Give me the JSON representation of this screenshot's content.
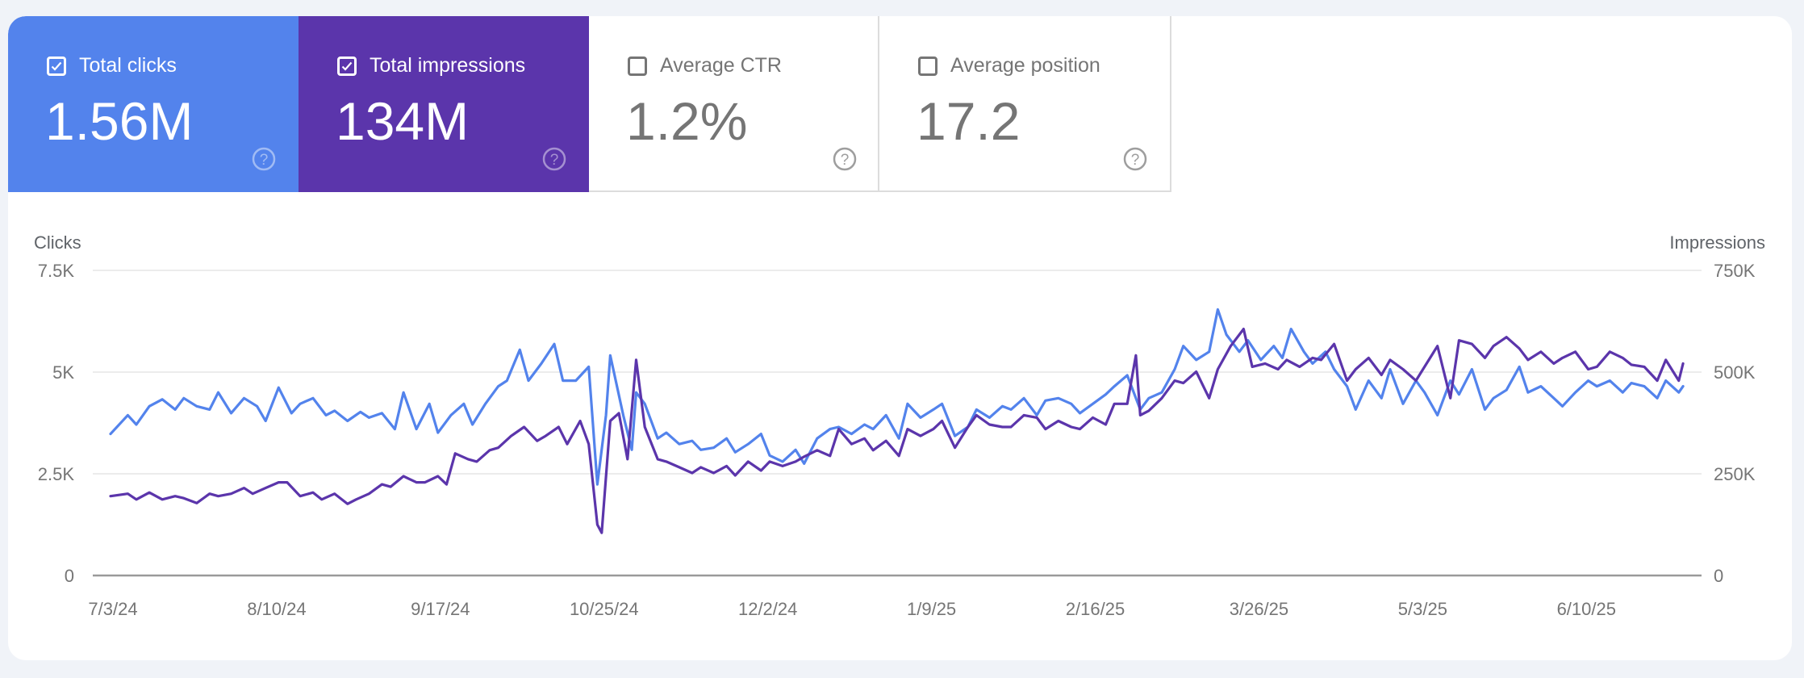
{
  "metrics": [
    {
      "id": "clicks",
      "label": "Total clicks",
      "value": "1.56M",
      "checked": true,
      "color": "#5383ec",
      "help_icon": "help-circle-icon"
    },
    {
      "id": "impressions",
      "label": "Total impressions",
      "value": "134M",
      "checked": true,
      "color": "#5b35ab",
      "help_icon": "help-circle-icon"
    },
    {
      "id": "ctr",
      "label": "Average CTR",
      "value": "1.2%",
      "checked": false,
      "color": "#ffffff",
      "help_icon": "help-circle-icon"
    },
    {
      "id": "position",
      "label": "Average position",
      "value": "17.2",
      "checked": false,
      "color": "#ffffff",
      "help_icon": "help-circle-icon"
    }
  ],
  "chart_data": {
    "type": "line",
    "start_date": "7/3/24",
    "x_unit": "days since start",
    "left_axis": {
      "title": "Clicks",
      "ticks": [
        "0",
        "2.5K",
        "5K",
        "7.5K"
      ],
      "range": [
        0,
        7500
      ]
    },
    "right_axis": {
      "title": "Impressions",
      "ticks": [
        "0",
        "250K",
        "500K",
        "750K"
      ],
      "range": [
        0,
        750000
      ]
    },
    "x_ticks": [
      "7/3/24",
      "8/10/24",
      "9/17/24",
      "10/25/24",
      "12/2/24",
      "1/9/25",
      "2/16/25",
      "3/26/25",
      "5/3/25",
      "6/10/25"
    ],
    "x_tick_spacing_days": 38,
    "x_range_days": [
      0,
      365
    ],
    "grid": true,
    "series": [
      {
        "name": "Impressions",
        "axis": "right",
        "color": "#5383ec",
        "points": [
          [
            0,
            348000
          ],
          [
            4,
            394000
          ],
          [
            6,
            371000
          ],
          [
            9,
            416000
          ],
          [
            12,
            433000
          ],
          [
            15,
            408000
          ],
          [
            17,
            436000
          ],
          [
            20,
            416000
          ],
          [
            23,
            408000
          ],
          [
            25,
            450000
          ],
          [
            28,
            399000
          ],
          [
            31,
            436000
          ],
          [
            34,
            416000
          ],
          [
            36,
            380000
          ],
          [
            39,
            462000
          ],
          [
            42,
            399000
          ],
          [
            44,
            422000
          ],
          [
            47,
            436000
          ],
          [
            50,
            394000
          ],
          [
            52,
            405000
          ],
          [
            55,
            380000
          ],
          [
            58,
            402000
          ],
          [
            60,
            388000
          ],
          [
            63,
            399000
          ],
          [
            66,
            360000
          ],
          [
            68,
            450000
          ],
          [
            71,
            360000
          ],
          [
            74,
            422000
          ],
          [
            76,
            351000
          ],
          [
            79,
            394000
          ],
          [
            82,
            422000
          ],
          [
            84,
            371000
          ],
          [
            87,
            422000
          ],
          [
            90,
            465000
          ],
          [
            92,
            479000
          ],
          [
            95,
            555000
          ],
          [
            97,
            479000
          ],
          [
            100,
            521000
          ],
          [
            103,
            569000
          ],
          [
            105,
            479000
          ],
          [
            108,
            479000
          ],
          [
            111,
            513000
          ],
          [
            113,
            224000
          ],
          [
            115,
            394000
          ],
          [
            116,
            541000
          ],
          [
            119,
            394000
          ],
          [
            121,
            309000
          ],
          [
            122,
            450000
          ],
          [
            124,
            422000
          ],
          [
            127,
            337000
          ],
          [
            129,
            351000
          ],
          [
            132,
            323000
          ],
          [
            135,
            331000
          ],
          [
            137,
            309000
          ],
          [
            140,
            314000
          ],
          [
            143,
            337000
          ],
          [
            145,
            303000
          ],
          [
            148,
            323000
          ],
          [
            151,
            348000
          ],
          [
            153,
            295000
          ],
          [
            156,
            280000
          ],
          [
            159,
            309000
          ],
          [
            161,
            275000
          ],
          [
            164,
            337000
          ],
          [
            167,
            360000
          ],
          [
            169,
            365000
          ],
          [
            172,
            348000
          ],
          [
            175,
            371000
          ],
          [
            177,
            360000
          ],
          [
            180,
            394000
          ],
          [
            183,
            337000
          ],
          [
            185,
            422000
          ],
          [
            188,
            388000
          ],
          [
            191,
            408000
          ],
          [
            193,
            422000
          ],
          [
            196,
            343000
          ],
          [
            199,
            365000
          ],
          [
            201,
            408000
          ],
          [
            204,
            388000
          ],
          [
            207,
            416000
          ],
          [
            209,
            408000
          ],
          [
            212,
            436000
          ],
          [
            215,
            394000
          ],
          [
            217,
            430000
          ],
          [
            220,
            436000
          ],
          [
            223,
            422000
          ],
          [
            225,
            399000
          ],
          [
            228,
            422000
          ],
          [
            231,
            445000
          ],
          [
            233,
            465000
          ],
          [
            236,
            492000
          ],
          [
            239,
            408000
          ],
          [
            241,
            436000
          ],
          [
            244,
            450000
          ],
          [
            247,
            507000
          ],
          [
            249,
            564000
          ],
          [
            252,
            530000
          ],
          [
            255,
            550000
          ],
          [
            257,
            654000
          ],
          [
            259,
            592000
          ],
          [
            262,
            550000
          ],
          [
            264,
            578000
          ],
          [
            267,
            530000
          ],
          [
            270,
            564000
          ],
          [
            272,
            535000
          ],
          [
            274,
            606000
          ],
          [
            277,
            550000
          ],
          [
            279,
            521000
          ],
          [
            282,
            550000
          ],
          [
            284,
            507000
          ],
          [
            287,
            465000
          ],
          [
            289,
            408000
          ],
          [
            292,
            479000
          ],
          [
            295,
            436000
          ],
          [
            297,
            507000
          ],
          [
            300,
            422000
          ],
          [
            303,
            479000
          ],
          [
            305,
            450000
          ],
          [
            308,
            394000
          ],
          [
            311,
            479000
          ],
          [
            313,
            445000
          ],
          [
            316,
            507000
          ],
          [
            319,
            408000
          ],
          [
            321,
            436000
          ],
          [
            324,
            456000
          ],
          [
            327,
            513000
          ],
          [
            329,
            450000
          ],
          [
            332,
            465000
          ],
          [
            335,
            436000
          ],
          [
            337,
            416000
          ],
          [
            340,
            450000
          ],
          [
            343,
            479000
          ],
          [
            345,
            465000
          ],
          [
            348,
            479000
          ],
          [
            351,
            450000
          ],
          [
            353,
            473000
          ],
          [
            356,
            465000
          ],
          [
            359,
            436000
          ],
          [
            361,
            479000
          ],
          [
            364,
            450000
          ],
          [
            365,
            465000
          ]
        ]
      },
      {
        "name": "Clicks",
        "axis": "left",
        "color": "#5b35ab",
        "points": [
          [
            0,
            1950
          ],
          [
            4,
            2010
          ],
          [
            6,
            1870
          ],
          [
            9,
            2040
          ],
          [
            12,
            1870
          ],
          [
            15,
            1950
          ],
          [
            17,
            1900
          ],
          [
            20,
            1780
          ],
          [
            23,
            2010
          ],
          [
            25,
            1950
          ],
          [
            28,
            2010
          ],
          [
            31,
            2150
          ],
          [
            33,
            2010
          ],
          [
            36,
            2150
          ],
          [
            39,
            2290
          ],
          [
            41,
            2290
          ],
          [
            44,
            1950
          ],
          [
            47,
            2040
          ],
          [
            49,
            1870
          ],
          [
            52,
            2010
          ],
          [
            55,
            1760
          ],
          [
            57,
            1870
          ],
          [
            60,
            2010
          ],
          [
            63,
            2240
          ],
          [
            65,
            2180
          ],
          [
            68,
            2440
          ],
          [
            71,
            2290
          ],
          [
            73,
            2290
          ],
          [
            76,
            2440
          ],
          [
            78,
            2240
          ],
          [
            80,
            3000
          ],
          [
            83,
            2860
          ],
          [
            85,
            2800
          ],
          [
            88,
            3080
          ],
          [
            90,
            3140
          ],
          [
            93,
            3430
          ],
          [
            96,
            3650
          ],
          [
            99,
            3310
          ],
          [
            101,
            3430
          ],
          [
            104,
            3650
          ],
          [
            106,
            3230
          ],
          [
            109,
            3800
          ],
          [
            111,
            3230
          ],
          [
            113,
            1250
          ],
          [
            114,
            1050
          ],
          [
            116,
            3800
          ],
          [
            118,
            3990
          ],
          [
            120,
            2860
          ],
          [
            122,
            5300
          ],
          [
            124,
            3650
          ],
          [
            127,
            2860
          ],
          [
            129,
            2800
          ],
          [
            132,
            2660
          ],
          [
            135,
            2520
          ],
          [
            137,
            2660
          ],
          [
            140,
            2520
          ],
          [
            143,
            2690
          ],
          [
            145,
            2460
          ],
          [
            148,
            2800
          ],
          [
            151,
            2580
          ],
          [
            153,
            2800
          ],
          [
            156,
            2690
          ],
          [
            159,
            2800
          ],
          [
            161,
            2920
          ],
          [
            164,
            3080
          ],
          [
            167,
            2940
          ],
          [
            169,
            3600
          ],
          [
            172,
            3230
          ],
          [
            175,
            3370
          ],
          [
            177,
            3080
          ],
          [
            180,
            3310
          ],
          [
            183,
            2940
          ],
          [
            185,
            3600
          ],
          [
            188,
            3430
          ],
          [
            191,
            3600
          ],
          [
            193,
            3800
          ],
          [
            196,
            3140
          ],
          [
            199,
            3650
          ],
          [
            201,
            3940
          ],
          [
            204,
            3710
          ],
          [
            207,
            3650
          ],
          [
            209,
            3650
          ],
          [
            212,
            3940
          ],
          [
            215,
            3880
          ],
          [
            217,
            3600
          ],
          [
            220,
            3800
          ],
          [
            223,
            3650
          ],
          [
            225,
            3600
          ],
          [
            228,
            3880
          ],
          [
            231,
            3710
          ],
          [
            233,
            4220
          ],
          [
            236,
            4220
          ],
          [
            238,
            5410
          ],
          [
            239,
            3940
          ],
          [
            241,
            4050
          ],
          [
            244,
            4360
          ],
          [
            247,
            4790
          ],
          [
            249,
            4730
          ],
          [
            252,
            5010
          ],
          [
            255,
            4360
          ],
          [
            257,
            5070
          ],
          [
            260,
            5640
          ],
          [
            263,
            6060
          ],
          [
            265,
            5130
          ],
          [
            268,
            5210
          ],
          [
            271,
            5070
          ],
          [
            273,
            5300
          ],
          [
            276,
            5130
          ],
          [
            279,
            5350
          ],
          [
            281,
            5300
          ],
          [
            284,
            5690
          ],
          [
            287,
            4790
          ],
          [
            289,
            5070
          ],
          [
            292,
            5350
          ],
          [
            295,
            4930
          ],
          [
            297,
            5300
          ],
          [
            300,
            5070
          ],
          [
            303,
            4790
          ],
          [
            305,
            5130
          ],
          [
            308,
            5640
          ],
          [
            311,
            4360
          ],
          [
            313,
            5780
          ],
          [
            316,
            5690
          ],
          [
            319,
            5350
          ],
          [
            321,
            5640
          ],
          [
            324,
            5860
          ],
          [
            327,
            5580
          ],
          [
            329,
            5300
          ],
          [
            332,
            5500
          ],
          [
            335,
            5210
          ],
          [
            337,
            5350
          ],
          [
            340,
            5500
          ],
          [
            343,
            5070
          ],
          [
            345,
            5130
          ],
          [
            348,
            5500
          ],
          [
            351,
            5350
          ],
          [
            353,
            5180
          ],
          [
            356,
            5130
          ],
          [
            359,
            4790
          ],
          [
            361,
            5300
          ],
          [
            364,
            4790
          ],
          [
            365,
            5210
          ]
        ]
      }
    ]
  }
}
